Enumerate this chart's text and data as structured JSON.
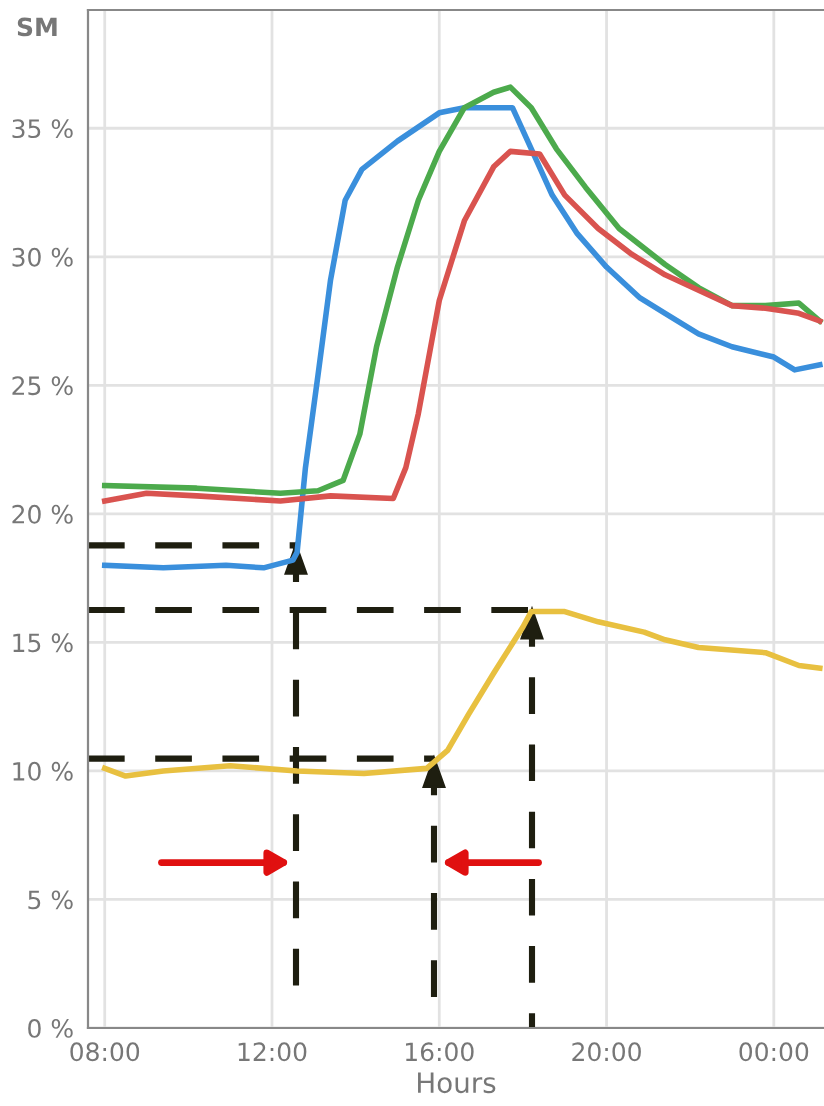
{
  "chart_data": {
    "type": "line",
    "ylabel": "SM",
    "xlabel": "Hours",
    "xlim": [
      7.6,
      25.2
    ],
    "xticks": [
      {
        "value": 8,
        "label": "08:00"
      },
      {
        "value": 12,
        "label": "12:00"
      },
      {
        "value": 16,
        "label": "16:00"
      },
      {
        "value": 20,
        "label": "20:00"
      },
      {
        "value": 24,
        "label": "00:00"
      }
    ],
    "ylim": [
      0,
      39.6
    ],
    "yticks": [
      {
        "value": 0,
        "label": "0 %"
      },
      {
        "value": 5,
        "label": "5 %"
      },
      {
        "value": 10,
        "label": "10 %"
      },
      {
        "value": 15,
        "label": "15 %"
      },
      {
        "value": 20,
        "label": "20 %"
      },
      {
        "value": 25,
        "label": "25 %"
      },
      {
        "value": 30,
        "label": "30 %"
      },
      {
        "value": 35,
        "label": "35 %"
      }
    ],
    "grid": true,
    "marker": "none",
    "line_style": "solid",
    "series": [
      {
        "color": "#3a8fdc",
        "x": [
          8,
          9.4,
          10.9,
          11.8,
          12.5,
          12.6,
          12.8,
          13.1,
          13.4,
          13.75,
          14.15,
          15.0,
          16.0,
          16.6,
          17.75,
          18.2,
          18.7,
          19.3,
          20.0,
          20.8,
          21.4,
          22.2,
          23.0,
          24.0,
          24.5,
          25.1
        ],
        "values": [
          18.0,
          17.9,
          18.0,
          17.9,
          18.2,
          18.5,
          21.8,
          25.4,
          29.1,
          32.2,
          33.4,
          34.5,
          35.6,
          35.8,
          35.8,
          34.2,
          32.4,
          30.9,
          29.6,
          28.4,
          27.8,
          27.0,
          26.5,
          26.1,
          25.6,
          25.8
        ]
      },
      {
        "color": "#4caa4c",
        "x": [
          8,
          10.2,
          12.2,
          13.1,
          13.7,
          14.1,
          14.5,
          15.0,
          15.5,
          16.0,
          16.6,
          17.3,
          17.7,
          18.2,
          18.8,
          19.5,
          20.3,
          21.4,
          22.2,
          23.0,
          23.8,
          24.6,
          25.1
        ],
        "values": [
          21.1,
          21.0,
          20.8,
          20.9,
          21.3,
          23.1,
          26.5,
          29.6,
          32.2,
          34.1,
          35.8,
          36.4,
          36.6,
          35.8,
          34.2,
          32.7,
          31.1,
          29.7,
          28.8,
          28.1,
          28.1,
          28.2,
          27.5
        ]
      },
      {
        "color": "#d9534f",
        "x": [
          8,
          9.0,
          10.2,
          12.2,
          13.4,
          14.9,
          15.2,
          15.5,
          16.0,
          16.6,
          17.3,
          17.7,
          18.4,
          19.0,
          19.8,
          20.6,
          21.4,
          22.2,
          23.0,
          23.8,
          24.6,
          25.1
        ],
        "values": [
          20.5,
          20.8,
          20.7,
          20.5,
          20.7,
          20.6,
          21.8,
          23.9,
          28.3,
          31.4,
          33.5,
          34.1,
          34.0,
          32.4,
          31.1,
          30.1,
          29.3,
          28.7,
          28.1,
          28.0,
          27.8,
          27.5
        ]
      },
      {
        "color": "#e8c040",
        "x": [
          8,
          8.5,
          9.4,
          11.0,
          12.6,
          14.2,
          15.7,
          16.2,
          16.7,
          17.3,
          18.0,
          18.2,
          19.0,
          19.8,
          20.9,
          21.4,
          22.2,
          23.8,
          24.6,
          25.1
        ],
        "values": [
          10.1,
          9.8,
          10.0,
          10.2,
          10.0,
          9.9,
          10.1,
          10.8,
          12.2,
          13.8,
          15.6,
          16.2,
          16.2,
          15.8,
          15.4,
          15.1,
          14.8,
          14.6,
          14.1,
          14.0
        ]
      }
    ]
  }
}
